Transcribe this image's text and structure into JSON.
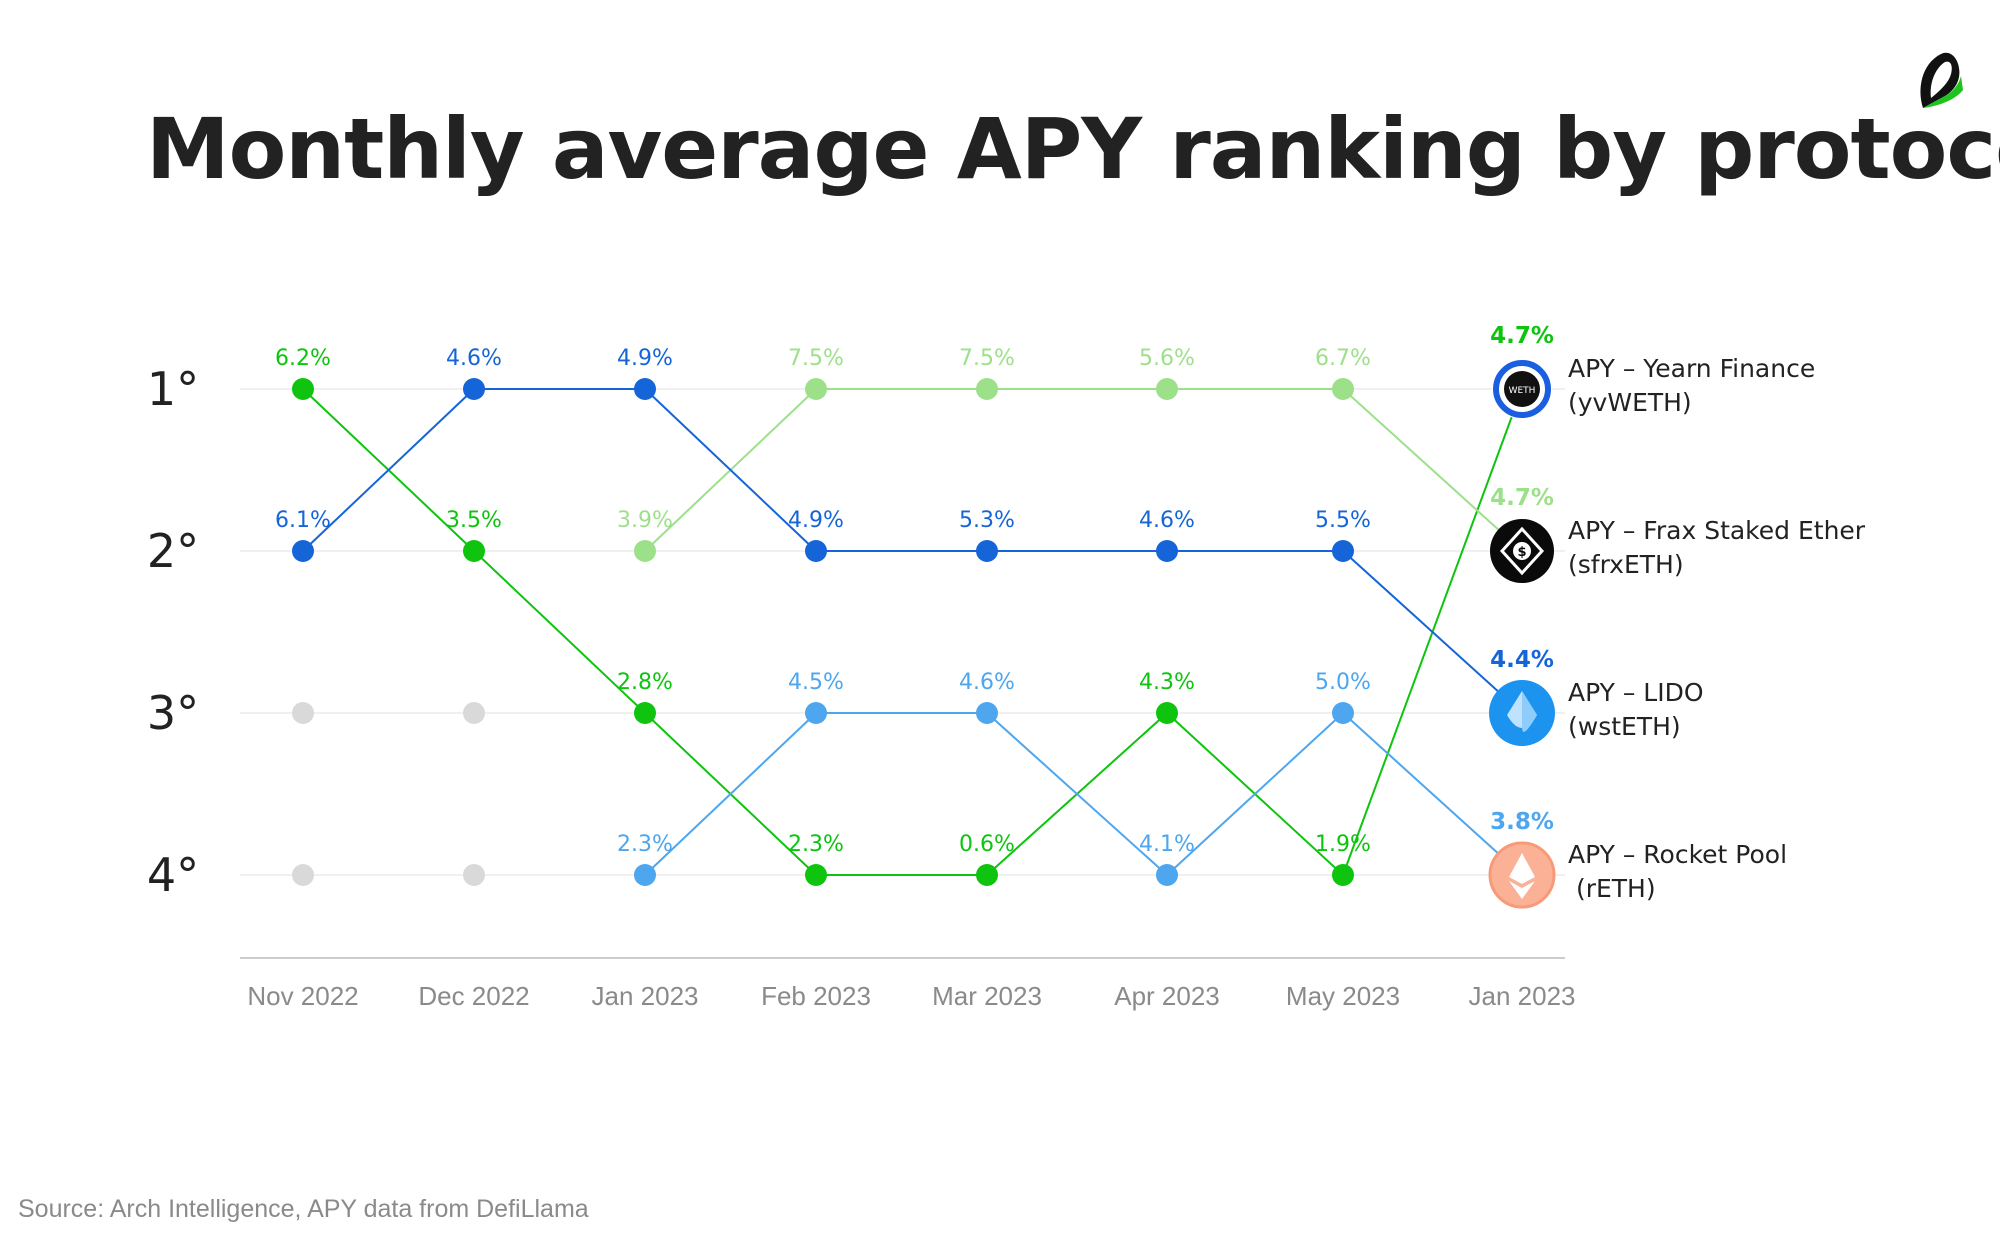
{
  "title": "Monthly average APY ranking by protocol",
  "source": "Source: Arch Intelligence, APY data from DefiLlama",
  "chart_data": {
    "type": "line",
    "x": [
      "Nov 2022",
      "Dec 2022",
      "Jan 2023",
      "Feb 2023",
      "Mar 2023",
      "Apr 2023",
      "May 2023",
      "Jan 2023"
    ],
    "y_ticks": [
      "1°",
      "2°",
      "3°",
      "4°"
    ],
    "y_range": [
      1,
      4
    ],
    "y_inverted": true,
    "grid": true,
    "legend_position": "right",
    "series": [
      {
        "name": "APY – Yearn Finance (yvWETH)",
        "color": "#0ec40e",
        "icon": "yvweth-icon",
        "ranks": [
          1,
          2,
          3,
          4,
          4,
          3,
          4,
          1
        ],
        "labels": [
          "6.2%",
          "3.5%",
          "2.8%",
          "2.3%",
          "0.6%",
          "4.3%",
          "1.9%",
          "4.7%"
        ]
      },
      {
        "name": "APY – Frax Staked Ether (sfrxETH)",
        "color": "#9de08a",
        "icon": "sfrxeth-icon",
        "ranks": [
          null,
          null,
          2,
          1,
          1,
          1,
          1,
          2
        ],
        "labels": [
          "",
          "",
          "3.9%",
          "7.5%",
          "7.5%",
          "5.6%",
          "6.7%",
          "4.7%"
        ]
      },
      {
        "name": "APY – LIDO (wstETH)",
        "color": "#1565d8",
        "icon": "wsteth-icon",
        "ranks": [
          2,
          1,
          1,
          2,
          2,
          2,
          2,
          3
        ],
        "labels": [
          "6.1%",
          "4.6%",
          "4.9%",
          "4.9%",
          "5.3%",
          "4.6%",
          "5.5%",
          "4.4%"
        ]
      },
      {
        "name": "APY – Rocket Pool (rETH)",
        "color": "#4ea6ef",
        "icon": "reth-icon",
        "ranks": [
          null,
          null,
          4,
          3,
          3,
          4,
          3,
          4
        ],
        "labels": [
          "",
          "",
          "2.3%",
          "4.5%",
          "4.6%",
          "4.1%",
          "5.0%",
          "3.8%"
        ]
      }
    ],
    "placeholders": [
      {
        "x_index": 0,
        "rank": 3
      },
      {
        "x_index": 0,
        "rank": 4
      },
      {
        "x_index": 1,
        "rank": 3
      },
      {
        "x_index": 1,
        "rank": 4
      }
    ],
    "placeholder_color": "#d9d9d9",
    "legend": [
      {
        "line1": "APY – Yearn Finance",
        "line2": "(yvWETH)",
        "value": "4.7%",
        "value_color": "#0ec40e"
      },
      {
        "line1": "APY – Frax Staked Ether",
        "line2": "(sfrxETH)",
        "value": "4.7%",
        "value_color": "#9de08a"
      },
      {
        "line1": "APY – LIDO",
        "line2": "(wstETH)",
        "value": "4.4%",
        "value_color": "#1565d8"
      },
      {
        "line1": "APY – Rocket Pool",
        "line2": " (rETH)",
        "value": "3.8%",
        "value_color": "#4ea6ef"
      }
    ]
  }
}
